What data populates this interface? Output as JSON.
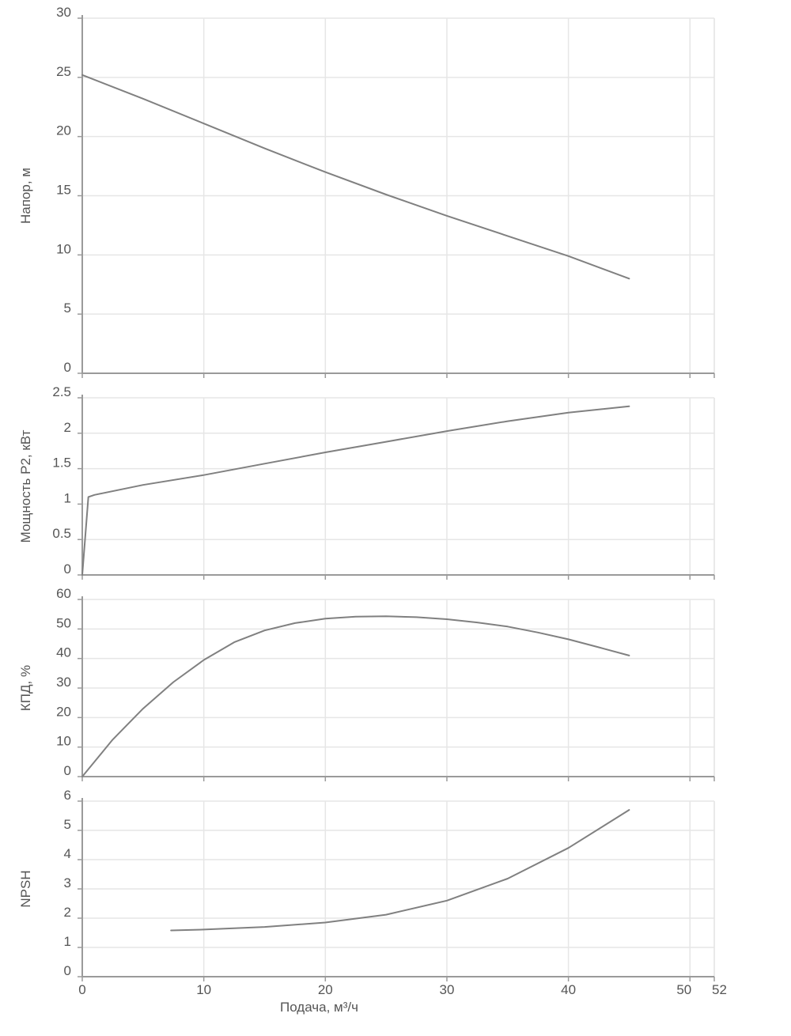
{
  "chart_data": [
    {
      "type": "line",
      "ylabel": "Напор, м",
      "ylim": [
        0,
        30
      ],
      "yticks": [
        "0",
        "5",
        "10",
        "15",
        "20",
        "25",
        "30"
      ],
      "grid": true,
      "series": [
        {
          "x": [
            0,
            5,
            10,
            15,
            20,
            25,
            30,
            35,
            40,
            45
          ],
          "values": [
            25.2,
            23.2,
            21.1,
            19.0,
            17.0,
            15.1,
            13.3,
            11.6,
            9.9,
            8.0
          ]
        }
      ]
    },
    {
      "type": "line",
      "ylabel": "Мощность P2, кВт",
      "ylim": [
        0,
        2.5
      ],
      "yticks": [
        "0",
        "0.5",
        "1",
        "1.5",
        "2",
        "2.5"
      ],
      "grid": true,
      "series": [
        {
          "x": [
            0,
            0.5,
            1,
            5,
            10,
            15,
            20,
            25,
            30,
            35,
            40,
            45
          ],
          "values": [
            0,
            1.1,
            1.13,
            1.27,
            1.41,
            1.57,
            1.73,
            1.88,
            2.03,
            2.17,
            2.29,
            2.38
          ]
        }
      ]
    },
    {
      "type": "line",
      "ylabel": "КПД, %",
      "ylim": [
        0,
        60
      ],
      "yticks": [
        "0",
        "10",
        "20",
        "30",
        "40",
        "50",
        "60"
      ],
      "grid": true,
      "series": [
        {
          "x": [
            0,
            2.5,
            5,
            7.5,
            10,
            12.5,
            15,
            17.5,
            20,
            22.5,
            25,
            27.5,
            30,
            32.5,
            35,
            37.5,
            40,
            42.5,
            45
          ],
          "values": [
            0,
            12.5,
            23,
            32,
            39.5,
            45.5,
            49.5,
            52,
            53.5,
            54.2,
            54.3,
            54,
            53.3,
            52.2,
            50.8,
            48.8,
            46.5,
            43.8,
            41
          ]
        }
      ]
    },
    {
      "type": "line",
      "ylabel": "NPSH",
      "ylim": [
        0,
        6
      ],
      "yticks": [
        "0",
        "1",
        "2",
        "3",
        "4",
        "5",
        "6"
      ],
      "xlabel": "Подача, м³/ч",
      "xlim": [
        0,
        52
      ],
      "xticks": [
        {
          "value": 0,
          "label": "0"
        },
        {
          "value": 10,
          "label": "10"
        },
        {
          "value": 20,
          "label": "20"
        },
        {
          "value": 30,
          "label": "30"
        },
        {
          "value": 40,
          "label": "40"
        },
        {
          "value": 50,
          "label": "50"
        },
        {
          "value": 52,
          "label": "52"
        }
      ],
      "grid": true,
      "series": [
        {
          "x": [
            7.3,
            10,
            15,
            20,
            25,
            30,
            35,
            40,
            45
          ],
          "values": [
            1.58,
            1.61,
            1.7,
            1.85,
            2.12,
            2.6,
            3.35,
            4.4,
            5.7
          ]
        }
      ]
    }
  ],
  "colors": {
    "line": "#808080",
    "grid": "#e6e6e6",
    "axis": "#9a9a9a",
    "text": "#555555"
  }
}
